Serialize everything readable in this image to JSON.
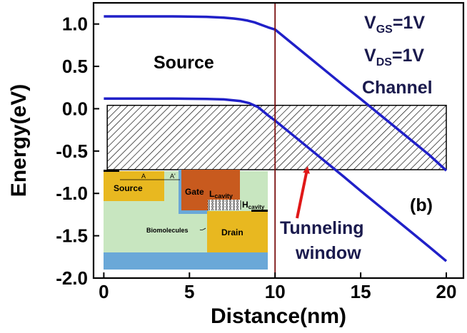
{
  "chart_data": {
    "type": "line",
    "title": "",
    "xlabel": "Distance(nm)",
    "ylabel": "Energy(eV)",
    "xlim": [
      -0.6,
      21.0
    ],
    "ylim": [
      -2.0,
      1.25
    ],
    "x_ticks": [
      0,
      5,
      10,
      15,
      20
    ],
    "x_tick_labels": [
      "0",
      "5",
      "10",
      "15",
      "20"
    ],
    "y_ticks": [
      1.0,
      0.5,
      0.0,
      -0.5,
      -1.0,
      -1.5,
      -2.0
    ],
    "y_tick_labels": [
      "1.0",
      "0.5",
      "0.0",
      "-0.5",
      "-1.0",
      "-1.5",
      "-2.0"
    ],
    "grid": false,
    "series": [
      {
        "color": "#2020c8",
        "x": [
          0,
          2,
          4,
          6,
          7,
          7.6,
          8,
          8.4,
          8.8,
          9.2,
          9.6,
          10,
          11,
          12,
          13,
          14,
          15,
          16,
          17,
          18,
          19,
          20
        ],
        "y": [
          1.09,
          1.09,
          1.09,
          1.085,
          1.075,
          1.065,
          1.055,
          1.04,
          1.02,
          0.99,
          0.96,
          0.935,
          0.77,
          0.605,
          0.44,
          0.275,
          0.115,
          -0.05,
          -0.215,
          -0.38,
          -0.545,
          -0.73
        ]
      },
      {
        "color": "#2020c8",
        "x": [
          0,
          2,
          4,
          6,
          7,
          8,
          8.5,
          9.0,
          9.3,
          9.6,
          10,
          11,
          12,
          13,
          14,
          15,
          16,
          17,
          18,
          19,
          20
        ],
        "y": [
          0.12,
          0.12,
          0.12,
          0.115,
          0.11,
          0.09,
          0.065,
          0.02,
          -0.03,
          -0.08,
          -0.14,
          -0.305,
          -0.47,
          -0.635,
          -0.8,
          -0.97,
          -1.135,
          -1.3,
          -1.465,
          -1.63,
          -1.8
        ]
      }
    ],
    "tunneling_window": {
      "x_start": 0.2,
      "x_end": 20.0,
      "y_top": 0.04,
      "y_bottom": -0.72
    },
    "vertical_line_x": 10,
    "annotations": {
      "source": "Source",
      "channel": "Channel",
      "vgs_main": "V",
      "vgs_sub": "GS",
      "vgs_rest": "=1V",
      "vds_main": "V",
      "vds_sub": "DS",
      "vds_rest": "=1V",
      "panel_label": "(b)",
      "tunneling_line1": "Tunneling",
      "tunneling_line2": "window"
    },
    "inset": {
      "source": "Source",
      "gate": "Gate",
      "drain": "Drain",
      "biomolecules": "Biomolecules",
      "a_label": "A",
      "a_prime_label": "A'",
      "l_cavity_main": "L",
      "l_cavity_sub": "cavity",
      "h_cavity_main": "H",
      "h_cavity_sub": "cavity"
    },
    "colors": {
      "curve": "#2020c8",
      "vline": "#7a1010",
      "arrow": "#e01818",
      "inset_body": "#c8e6c0",
      "inset_source": "#e8b820",
      "inset_gate": "#c85a1e",
      "inset_oxide": "#6aa8d8"
    }
  }
}
